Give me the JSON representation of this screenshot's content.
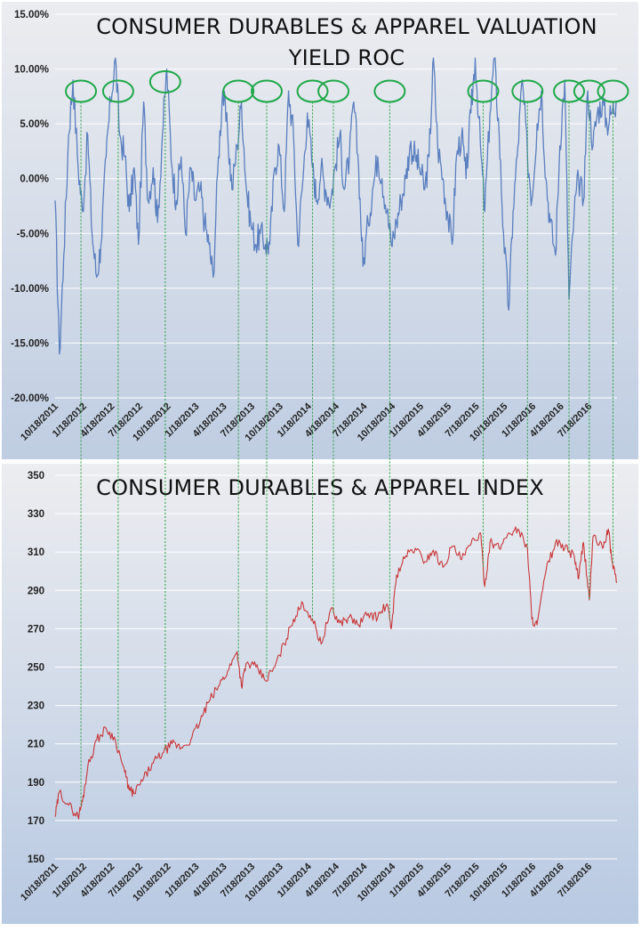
{
  "colors": {
    "yield_line": "#5a7fbf",
    "index_line": "#c8383a",
    "peak_marker": "#1fa84a",
    "connector": "#22a03a",
    "grid": "#ffffff"
  },
  "chart_data": [
    {
      "type": "line",
      "title": "CONSUMER DURABLES & APPAREL VALUATION",
      "subtitle": "YIELD ROC",
      "grid": true,
      "ylim": [
        -0.2,
        0.15
      ],
      "yticks": [
        0.15,
        0.1,
        0.05,
        0.0,
        -0.05,
        -0.1,
        -0.15,
        -0.2
      ],
      "ytick_labels": [
        "15.00%",
        "10.00%",
        "5.00%",
        "0.00%",
        "-5.00%",
        "-10.00%",
        "-15.00%",
        "-20.00%"
      ],
      "x_tick_labels": [
        "10/18/2011",
        "1/18/2012",
        "4/18/2012",
        "7/18/2012",
        "10/18/2012",
        "1/18/2013",
        "4/18/2013",
        "7/18/2013",
        "10/18/2013",
        "1/18/2014",
        "4/18/2014",
        "7/18/2014",
        "10/18/2014",
        "1/18/2015",
        "4/18/2015",
        "7/18/2015",
        "10/18/2015",
        "1/18/2016",
        "4/18/2016",
        "7/18/2016"
      ],
      "series": [
        {
          "x": [
            "2011-10-18",
            "2011-11-01",
            "2011-11-15",
            "2011-12-01",
            "2011-12-15",
            "2012-01-01",
            "2012-01-15",
            "2012-02-01",
            "2012-02-15",
            "2012-03-01",
            "2012-03-15",
            "2012-04-01",
            "2012-04-15",
            "2012-05-01",
            "2012-05-15",
            "2012-06-01",
            "2012-06-15",
            "2012-07-01",
            "2012-07-15",
            "2012-08-01",
            "2012-08-15",
            "2012-09-01",
            "2012-09-15",
            "2012-10-01",
            "2012-10-15",
            "2012-11-01",
            "2012-11-15",
            "2012-12-01",
            "2012-12-15",
            "2013-01-01",
            "2013-01-15",
            "2013-02-01",
            "2013-02-15",
            "2013-03-01",
            "2013-03-15",
            "2013-04-01",
            "2013-04-15",
            "2013-05-01",
            "2013-05-15",
            "2013-06-01",
            "2013-06-15",
            "2013-07-01",
            "2013-07-15",
            "2013-08-01",
            "2013-08-15",
            "2013-09-01",
            "2013-09-15",
            "2013-10-01",
            "2013-10-15",
            "2013-11-01",
            "2013-11-15",
            "2013-12-01",
            "2013-12-15",
            "2014-01-01",
            "2014-01-15",
            "2014-02-01",
            "2014-02-15",
            "2014-03-01",
            "2014-03-15",
            "2014-04-01",
            "2014-04-15",
            "2014-05-01",
            "2014-05-15",
            "2014-06-01",
            "2014-06-15",
            "2014-07-01",
            "2014-07-15",
            "2014-08-01",
            "2014-08-15",
            "2014-09-01",
            "2014-09-15",
            "2014-10-01",
            "2014-10-15",
            "2014-11-01",
            "2014-11-15",
            "2014-12-01",
            "2014-12-15",
            "2015-01-01",
            "2015-01-15",
            "2015-02-01",
            "2015-02-15",
            "2015-03-01",
            "2015-03-15",
            "2015-04-01",
            "2015-04-15",
            "2015-05-01",
            "2015-05-15",
            "2015-06-01",
            "2015-06-15",
            "2015-07-01",
            "2015-07-15",
            "2015-08-01",
            "2015-08-15",
            "2015-09-01",
            "2015-09-15",
            "2015-10-01",
            "2015-10-15",
            "2015-11-01",
            "2015-11-15",
            "2015-12-01",
            "2015-12-15",
            "2016-01-01",
            "2016-01-15",
            "2016-02-01",
            "2016-02-15",
            "2016-03-01",
            "2016-03-15",
            "2016-04-01",
            "2016-04-15",
            "2016-05-01",
            "2016-05-15",
            "2016-06-01",
            "2016-06-15",
            "2016-07-01",
            "2016-07-15",
            "2016-08-01",
            "2016-08-15",
            "2016-09-01",
            "2016-09-15",
            "2016-10-01",
            "2016-10-15"
          ],
          "values": [
            -0.02,
            -0.16,
            -0.07,
            0.04,
            0.09,
            0.01,
            -0.03,
            0.04,
            -0.05,
            -0.09,
            -0.06,
            0.02,
            0.07,
            0.11,
            0.04,
            0.02,
            -0.03,
            0.01,
            -0.06,
            0.07,
            -0.02,
            0.01,
            -0.04,
            0.04,
            0.1,
            0.01,
            -0.02,
            0.02,
            -0.05,
            0.01,
            -0.02,
            -0.01,
            -0.04,
            -0.06,
            -0.09,
            0.02,
            0.08,
            0.04,
            -0.01,
            0.03,
            0.07,
            -0.01,
            -0.04,
            -0.06,
            -0.05,
            -0.06,
            -0.06,
            0.01,
            0.03,
            -0.03,
            0.08,
            0.04,
            -0.06,
            0.0,
            0.06,
            0.01,
            -0.02,
            0.01,
            -0.01,
            -0.02,
            0.01,
            0.04,
            -0.01,
            0.02,
            0.07,
            0.01,
            -0.08,
            -0.04,
            -0.01,
            0.02,
            0.0,
            -0.03,
            -0.06,
            -0.04,
            -0.02,
            0.0,
            0.03,
            0.02,
            0.01,
            -0.01,
            0.02,
            0.11,
            0.03,
            0.0,
            -0.03,
            -0.06,
            0.02,
            0.04,
            0.0,
            0.06,
            0.11,
            0.03,
            -0.03,
            0.06,
            0.11,
            0.04,
            -0.05,
            -0.12,
            -0.03,
            0.03,
            0.09,
            0.02,
            -0.02,
            0.05,
            0.08,
            0.0,
            -0.04,
            -0.07,
            0.03,
            0.09,
            -0.11,
            -0.03,
            0.0,
            -0.02,
            0.08,
            0.03,
            0.06,
            0.07,
            0.05,
            0.06,
            0.07
          ]
        }
      ],
      "peak_dates": [
        "2012-01-10",
        "2012-05-10",
        "2012-10-10",
        "2013-06-05",
        "2013-09-05",
        "2014-02-01",
        "2014-04-10",
        "2014-10-10",
        "2015-08-10",
        "2016-01-01",
        "2016-05-15",
        "2016-07-20",
        "2016-10-05"
      ]
    },
    {
      "type": "line",
      "title": "CONSUMER DURABLES & APPAREL INDEX",
      "grid": true,
      "ylim": [
        150,
        350
      ],
      "yticks": [
        350,
        330,
        310,
        290,
        270,
        250,
        230,
        210,
        190,
        170,
        150
      ],
      "x_tick_labels": [
        "10/18/2011",
        "1/18/2012",
        "4/18/2012",
        "7/18/2012",
        "10/18/2012",
        "1/18/2013",
        "4/18/2013",
        "7/18/2013",
        "10/18/2013",
        "1/18/2014",
        "4/18/2014",
        "7/18/2014",
        "10/18/2014",
        "1/18/2015",
        "4/18/2015",
        "7/18/2015",
        "10/18/2015",
        "1/18/2016",
        "4/18/2016",
        "7/18/2016"
      ],
      "series": [
        {
          "x": [
            "2011-10-18",
            "2011-11-01",
            "2011-12-01",
            "2012-01-01",
            "2012-01-15",
            "2012-02-01",
            "2012-03-01",
            "2012-04-01",
            "2012-05-01",
            "2012-06-01",
            "2012-06-15",
            "2012-07-01",
            "2012-08-01",
            "2012-09-01",
            "2012-10-01",
            "2012-11-01",
            "2012-12-01",
            "2013-01-01",
            "2013-02-01",
            "2013-03-01",
            "2013-04-01",
            "2013-05-01",
            "2013-06-01",
            "2013-06-15",
            "2013-07-01",
            "2013-08-01",
            "2013-09-01",
            "2013-10-01",
            "2013-11-01",
            "2013-12-01",
            "2014-01-01",
            "2014-02-01",
            "2014-03-01",
            "2014-04-01",
            "2014-05-01",
            "2014-06-01",
            "2014-07-01",
            "2014-08-01",
            "2014-09-01",
            "2014-10-01",
            "2014-10-15",
            "2014-11-01",
            "2014-12-01",
            "2015-01-01",
            "2015-02-01",
            "2015-03-01",
            "2015-04-01",
            "2015-05-01",
            "2015-06-01",
            "2015-07-01",
            "2015-08-01",
            "2015-08-15",
            "2015-09-01",
            "2015-10-01",
            "2015-11-01",
            "2015-12-01",
            "2016-01-01",
            "2016-01-15",
            "2016-02-01",
            "2016-03-01",
            "2016-04-01",
            "2016-05-01",
            "2016-06-01",
            "2016-06-15",
            "2016-07-01",
            "2016-07-20",
            "2016-08-01",
            "2016-09-01",
            "2016-09-20",
            "2016-10-01",
            "2016-10-18"
          ],
          "values": [
            172,
            185,
            178,
            172,
            180,
            198,
            212,
            218,
            212,
            195,
            186,
            184,
            192,
            200,
            205,
            210,
            208,
            212,
            222,
            232,
            240,
            248,
            258,
            240,
            252,
            250,
            243,
            250,
            262,
            275,
            283,
            275,
            262,
            280,
            273,
            276,
            272,
            278,
            276,
            283,
            270,
            298,
            308,
            312,
            305,
            311,
            302,
            313,
            306,
            314,
            320,
            292,
            315,
            312,
            320,
            322,
            312,
            275,
            272,
            300,
            315,
            312,
            308,
            296,
            315,
            285,
            318,
            312,
            322,
            306,
            294
          ]
        }
      ]
    }
  ]
}
